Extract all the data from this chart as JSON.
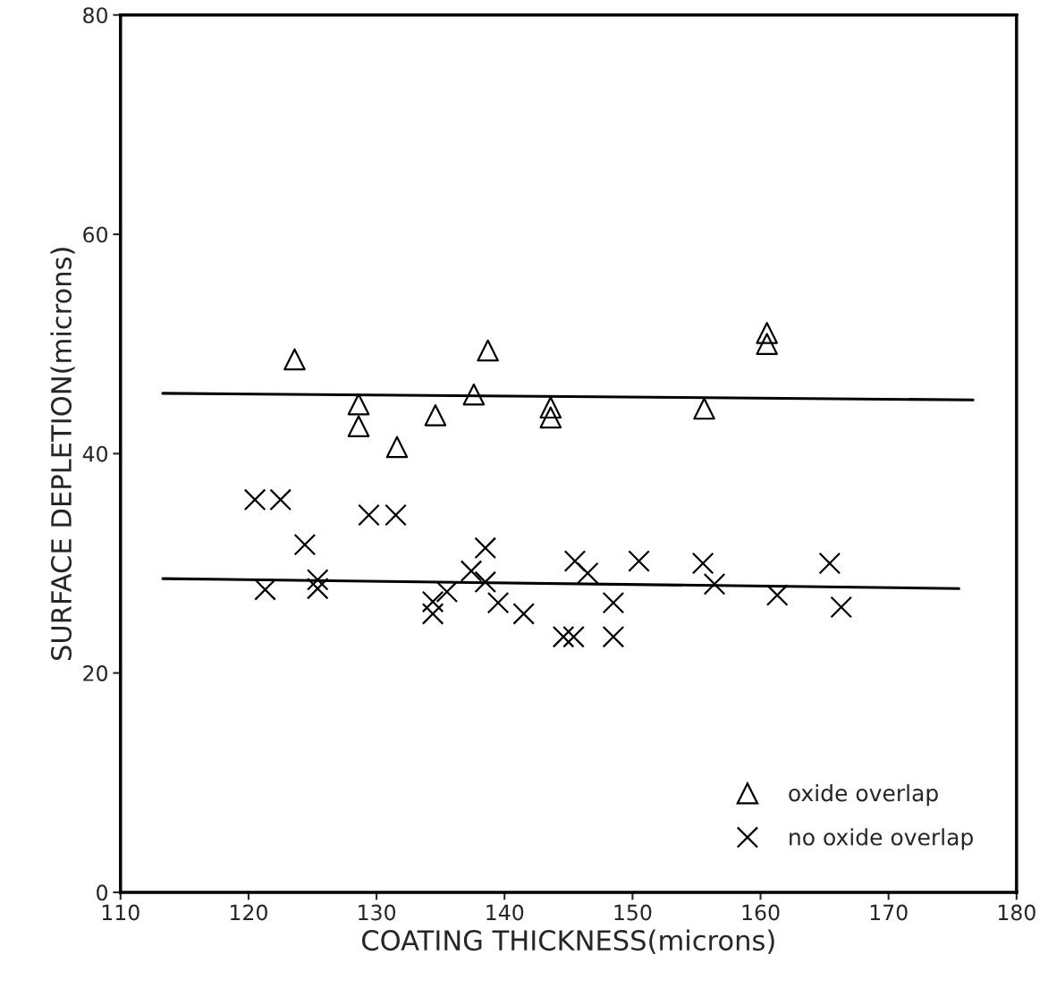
{
  "chart_data": {
    "type": "scatter",
    "xlabel": "COATING THICKNESS(microns)",
    "ylabel": "SURFACE DEPLETION(microns)",
    "xlim": [
      110,
      180
    ],
    "xticks": [
      110,
      120,
      130,
      140,
      150,
      160,
      170,
      180
    ],
    "ylim": [
      0,
      80
    ],
    "yticks": [
      0,
      20,
      40,
      60,
      80
    ],
    "grid": false,
    "legend": "bottom right",
    "series": [
      {
        "name": "oxide overlap",
        "marker": "triangle",
        "color": "#000000",
        "x": [
          123.6,
          128.6,
          128.6,
          131.6,
          134.6,
          137.6,
          138.7,
          143.6,
          143.6,
          155.6,
          160.5,
          160.5
        ],
        "values": [
          48.6,
          44.5,
          42.5,
          40.6,
          43.5,
          45.4,
          49.4,
          44.2,
          43.3,
          44.1,
          51.0,
          50.0
        ]
      },
      {
        "name": "no oxide overlap",
        "marker": "cross",
        "color": "#000000",
        "x": [
          120.5,
          122.5,
          121.3,
          124.4,
          125.4,
          125.4,
          129.4,
          131.5,
          134.4,
          134.4,
          135.5,
          137.4,
          138.5,
          138.5,
          139.5,
          141.5,
          144.6,
          145.4,
          145.5,
          146.5,
          148.5,
          148.5,
          150.5,
          155.5,
          156.4,
          161.3,
          165.4,
          166.3
        ],
        "values": [
          35.8,
          35.8,
          27.6,
          31.7,
          28.5,
          27.7,
          34.4,
          34.4,
          26.5,
          25.4,
          27.4,
          29.3,
          31.4,
          28.3,
          26.4,
          25.4,
          23.3,
          23.3,
          30.2,
          29.1,
          26.4,
          23.3,
          30.2,
          30.0,
          28.1,
          27.1,
          30.0,
          26.0
        ]
      },
      {
        "type": "line",
        "color": "#000000",
        "line_style": "solid",
        "x": [
          113.3,
          176.6
        ],
        "values": [
          45.5,
          44.9
        ]
      },
      {
        "type": "line",
        "color": "#000000",
        "line_style": "solid",
        "x": [
          113.3,
          175.5
        ],
        "values": [
          28.6,
          27.7
        ]
      }
    ]
  }
}
